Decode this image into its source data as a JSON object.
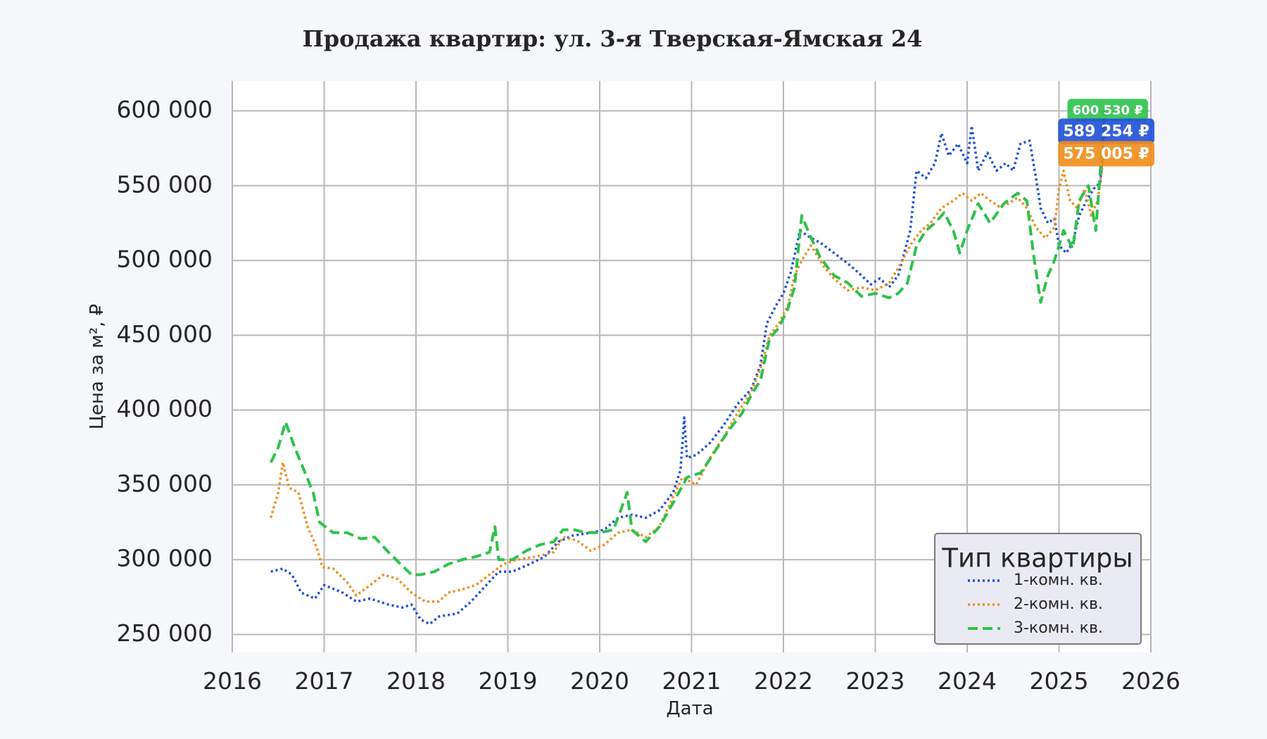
{
  "chart_data": {
    "type": "line",
    "title": "Продажа квартир: ул. 3-я Тверская-Ямская 24",
    "xlabel": "Дата",
    "ylabel": "Цена за м², ₽",
    "xlim": [
      2016,
      2026
    ],
    "ylim": [
      238000,
      620000
    ],
    "x_ticks": [
      "2016",
      "2017",
      "2018",
      "2019",
      "2020",
      "2021",
      "2022",
      "2023",
      "2024",
      "2025",
      "2026"
    ],
    "y_ticks": [
      "250 000",
      "300 000",
      "350 000",
      "400 000",
      "450 000",
      "500 000",
      "550 000",
      "600 000"
    ],
    "grid": true,
    "legend": {
      "title": "Тип квартиры",
      "position": "bottom-right"
    },
    "series": [
      {
        "name": "1-комн. кв.",
        "color": "#1f4fd8",
        "style": "dotted",
        "last_value_label": "589 254 ₽",
        "points": [
          [
            2016.42,
            292000
          ],
          [
            2016.55,
            294000
          ],
          [
            2016.65,
            290000
          ],
          [
            2016.75,
            278000
          ],
          [
            2016.9,
            274000
          ],
          [
            2017.0,
            283000
          ],
          [
            2017.2,
            278000
          ],
          [
            2017.35,
            272000
          ],
          [
            2017.5,
            274000
          ],
          [
            2017.7,
            270000
          ],
          [
            2017.85,
            268000
          ],
          [
            2017.95,
            270000
          ],
          [
            2018.05,
            260000
          ],
          [
            2018.15,
            257000
          ],
          [
            2018.25,
            262000
          ],
          [
            2018.45,
            264000
          ],
          [
            2018.6,
            272000
          ],
          [
            2018.75,
            282000
          ],
          [
            2018.9,
            292000
          ],
          [
            2019.05,
            292000
          ],
          [
            2019.2,
            296000
          ],
          [
            2019.4,
            302000
          ],
          [
            2019.55,
            312000
          ],
          [
            2019.7,
            316000
          ],
          [
            2019.9,
            318000
          ],
          [
            2020.05,
            320000
          ],
          [
            2020.2,
            328000
          ],
          [
            2020.35,
            330000
          ],
          [
            2020.5,
            328000
          ],
          [
            2020.65,
            333000
          ],
          [
            2020.8,
            345000
          ],
          [
            2020.88,
            360000
          ],
          [
            2020.92,
            395000
          ],
          [
            2020.95,
            368000
          ],
          [
            2021.05,
            370000
          ],
          [
            2021.2,
            378000
          ],
          [
            2021.35,
            390000
          ],
          [
            2021.5,
            404000
          ],
          [
            2021.65,
            414000
          ],
          [
            2021.75,
            430000
          ],
          [
            2021.82,
            458000
          ],
          [
            2021.92,
            470000
          ],
          [
            2022.0,
            478000
          ],
          [
            2022.08,
            492000
          ],
          [
            2022.18,
            520000
          ],
          [
            2022.3,
            515000
          ],
          [
            2022.4,
            512000
          ],
          [
            2022.55,
            505000
          ],
          [
            2022.7,
            498000
          ],
          [
            2022.85,
            490000
          ],
          [
            2022.95,
            484000
          ],
          [
            2023.05,
            488000
          ],
          [
            2023.15,
            482000
          ],
          [
            2023.25,
            490000
          ],
          [
            2023.38,
            520000
          ],
          [
            2023.45,
            560000
          ],
          [
            2023.55,
            555000
          ],
          [
            2023.65,
            565000
          ],
          [
            2023.72,
            585000
          ],
          [
            2023.8,
            570000
          ],
          [
            2023.9,
            578000
          ],
          [
            2024.0,
            565000
          ],
          [
            2024.05,
            590000
          ],
          [
            2024.12,
            560000
          ],
          [
            2024.22,
            572000
          ],
          [
            2024.32,
            560000
          ],
          [
            2024.42,
            565000
          ],
          [
            2024.5,
            560000
          ],
          [
            2024.58,
            578000
          ],
          [
            2024.68,
            580000
          ],
          [
            2024.75,
            555000
          ],
          [
            2024.8,
            535000
          ],
          [
            2024.88,
            525000
          ],
          [
            2024.95,
            528000
          ],
          [
            2025.0,
            510000
          ],
          [
            2025.08,
            505000
          ],
          [
            2025.15,
            512000
          ],
          [
            2025.22,
            530000
          ],
          [
            2025.3,
            540000
          ],
          [
            2025.38,
            548000
          ],
          [
            2025.45,
            552000
          ],
          [
            2025.5,
            589254
          ]
        ]
      },
      {
        "name": "2-комн. кв.",
        "color": "#f08c1a",
        "style": "dotted",
        "last_value_label": "575 005 ₽",
        "points": [
          [
            2016.42,
            328000
          ],
          [
            2016.5,
            345000
          ],
          [
            2016.55,
            365000
          ],
          [
            2016.62,
            348000
          ],
          [
            2016.72,
            345000
          ],
          [
            2016.82,
            322000
          ],
          [
            2016.92,
            308000
          ],
          [
            2016.98,
            295000
          ],
          [
            2017.1,
            294000
          ],
          [
            2017.25,
            285000
          ],
          [
            2017.35,
            276000
          ],
          [
            2017.5,
            283000
          ],
          [
            2017.65,
            290000
          ],
          [
            2017.8,
            287000
          ],
          [
            2017.95,
            278000
          ],
          [
            2018.1,
            272000
          ],
          [
            2018.25,
            272000
          ],
          [
            2018.35,
            278000
          ],
          [
            2018.5,
            280000
          ],
          [
            2018.65,
            283000
          ],
          [
            2018.8,
            290000
          ],
          [
            2018.95,
            297000
          ],
          [
            2019.1,
            300000
          ],
          [
            2019.3,
            302000
          ],
          [
            2019.5,
            305000
          ],
          [
            2019.6,
            315000
          ],
          [
            2019.75,
            313000
          ],
          [
            2019.9,
            306000
          ],
          [
            2020.05,
            310000
          ],
          [
            2020.2,
            318000
          ],
          [
            2020.35,
            320000
          ],
          [
            2020.5,
            315000
          ],
          [
            2020.65,
            322000
          ],
          [
            2020.8,
            342000
          ],
          [
            2020.9,
            355000
          ],
          [
            2021.05,
            350000
          ],
          [
            2021.2,
            368000
          ],
          [
            2021.35,
            382000
          ],
          [
            2021.5,
            398000
          ],
          [
            2021.65,
            412000
          ],
          [
            2021.75,
            428000
          ],
          [
            2021.85,
            450000
          ],
          [
            2021.95,
            458000
          ],
          [
            2022.05,
            470000
          ],
          [
            2022.12,
            490000
          ],
          [
            2022.2,
            500000
          ],
          [
            2022.3,
            510000
          ],
          [
            2022.45,
            495000
          ],
          [
            2022.55,
            488000
          ],
          [
            2022.7,
            480000
          ],
          [
            2022.85,
            482000
          ],
          [
            2023.0,
            480000
          ],
          [
            2023.15,
            485000
          ],
          [
            2023.25,
            495000
          ],
          [
            2023.4,
            512000
          ],
          [
            2023.5,
            520000
          ],
          [
            2023.6,
            525000
          ],
          [
            2023.72,
            535000
          ],
          [
            2023.85,
            540000
          ],
          [
            2023.95,
            545000
          ],
          [
            2024.05,
            540000
          ],
          [
            2024.15,
            545000
          ],
          [
            2024.25,
            540000
          ],
          [
            2024.35,
            536000
          ],
          [
            2024.45,
            538000
          ],
          [
            2024.55,
            542000
          ],
          [
            2024.65,
            535000
          ],
          [
            2024.75,
            522000
          ],
          [
            2024.85,
            515000
          ],
          [
            2024.95,
            522000
          ],
          [
            2025.0,
            548000
          ],
          [
            2025.05,
            560000
          ],
          [
            2025.12,
            540000
          ],
          [
            2025.2,
            535000
          ],
          [
            2025.28,
            548000
          ],
          [
            2025.35,
            530000
          ],
          [
            2025.42,
            540000
          ],
          [
            2025.5,
            575005
          ]
        ]
      },
      {
        "name": "3-комн. кв.",
        "color": "#2ec24a",
        "style": "dashed",
        "last_value_label": "600 530 ₽",
        "points": [
          [
            2016.42,
            365000
          ],
          [
            2016.5,
            375000
          ],
          [
            2016.58,
            392000
          ],
          [
            2016.68,
            375000
          ],
          [
            2016.78,
            360000
          ],
          [
            2016.88,
            345000
          ],
          [
            2016.95,
            325000
          ],
          [
            2017.1,
            318000
          ],
          [
            2017.25,
            318000
          ],
          [
            2017.4,
            314000
          ],
          [
            2017.55,
            315000
          ],
          [
            2017.7,
            305000
          ],
          [
            2017.85,
            296000
          ],
          [
            2017.95,
            290000
          ],
          [
            2018.05,
            290000
          ],
          [
            2018.2,
            292000
          ],
          [
            2018.35,
            297000
          ],
          [
            2018.5,
            300000
          ],
          [
            2018.65,
            302000
          ],
          [
            2018.8,
            305000
          ],
          [
            2018.86,
            322000
          ],
          [
            2018.9,
            300000
          ],
          [
            2019.05,
            300000
          ],
          [
            2019.2,
            306000
          ],
          [
            2019.35,
            310000
          ],
          [
            2019.5,
            312000
          ],
          [
            2019.6,
            320000
          ],
          [
            2019.72,
            320000
          ],
          [
            2019.85,
            318000
          ],
          [
            2020.0,
            318000
          ],
          [
            2020.15,
            320000
          ],
          [
            2020.3,
            345000
          ],
          [
            2020.35,
            320000
          ],
          [
            2020.5,
            312000
          ],
          [
            2020.65,
            322000
          ],
          [
            2020.8,
            338000
          ],
          [
            2020.95,
            355000
          ],
          [
            2021.1,
            358000
          ],
          [
            2021.25,
            372000
          ],
          [
            2021.4,
            386000
          ],
          [
            2021.55,
            398000
          ],
          [
            2021.65,
            410000
          ],
          [
            2021.75,
            420000
          ],
          [
            2021.85,
            448000
          ],
          [
            2021.95,
            455000
          ],
          [
            2022.05,
            468000
          ],
          [
            2022.12,
            482000
          ],
          [
            2022.2,
            530000
          ],
          [
            2022.28,
            518000
          ],
          [
            2022.4,
            502000
          ],
          [
            2022.55,
            490000
          ],
          [
            2022.7,
            485000
          ],
          [
            2022.85,
            476000
          ],
          [
            2023.0,
            478000
          ],
          [
            2023.15,
            475000
          ],
          [
            2023.25,
            478000
          ],
          [
            2023.35,
            485000
          ],
          [
            2023.45,
            510000
          ],
          [
            2023.55,
            520000
          ],
          [
            2023.65,
            525000
          ],
          [
            2023.75,
            532000
          ],
          [
            2023.85,
            520000
          ],
          [
            2023.92,
            505000
          ],
          [
            2024.0,
            520000
          ],
          [
            2024.12,
            538000
          ],
          [
            2024.25,
            525000
          ],
          [
            2024.4,
            538000
          ],
          [
            2024.55,
            545000
          ],
          [
            2024.65,
            540000
          ],
          [
            2024.72,
            505000
          ],
          [
            2024.8,
            472000
          ],
          [
            2024.88,
            490000
          ],
          [
            2024.95,
            500000
          ],
          [
            2025.05,
            520000
          ],
          [
            2025.15,
            508000
          ],
          [
            2025.22,
            540000
          ],
          [
            2025.32,
            550000
          ],
          [
            2025.4,
            520000
          ],
          [
            2025.5,
            600530
          ]
        ]
      }
    ]
  }
}
